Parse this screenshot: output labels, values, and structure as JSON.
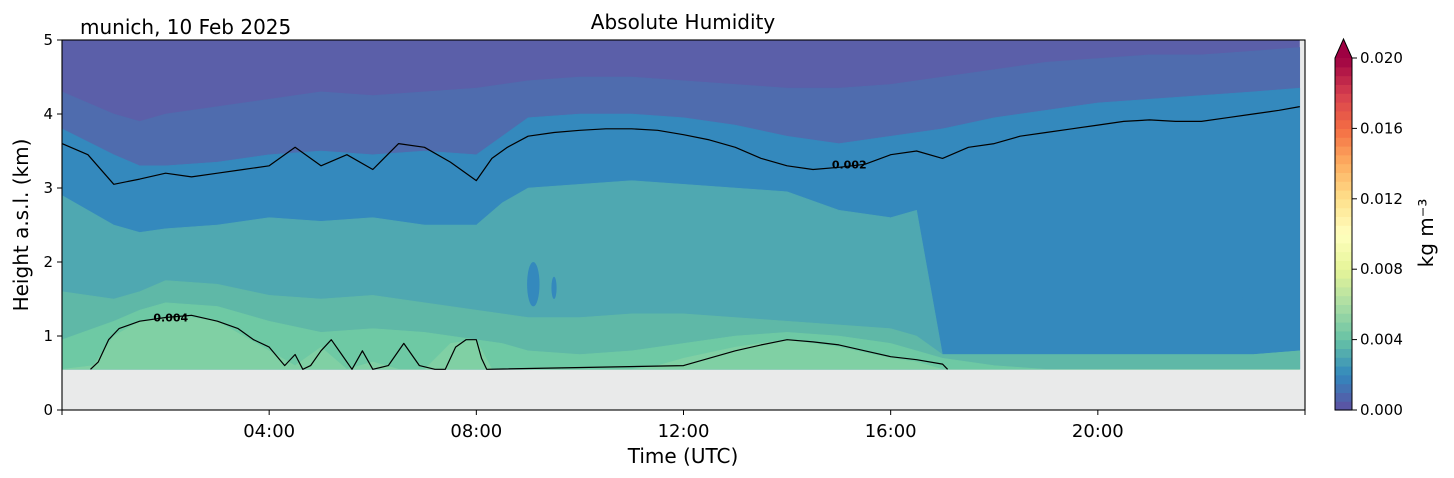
{
  "chart_data": {
    "type": "heatmap",
    "title": "Absolute Humidity",
    "subtitle": "munich, 10 Feb 2025",
    "xlabel": "Time (UTC)",
    "ylabel": "Height a.s.l. (km)",
    "xlim": [
      0,
      24
    ],
    "ylim": [
      0,
      5
    ],
    "x_ticks": [
      4,
      8,
      12,
      16,
      20
    ],
    "x_tick_labels": [
      "04:00",
      "08:00",
      "12:00",
      "16:00",
      "20:00"
    ],
    "y_ticks": [
      0,
      1,
      2,
      3,
      4,
      5
    ],
    "y_tick_labels": [
      "0",
      "1",
      "2",
      "3",
      "4",
      "5"
    ],
    "no_data_below_km": 0.55,
    "data_time_range": [
      0,
      23.9
    ],
    "colorbar": {
      "label": "kg m⁻³",
      "range": [
        0,
        0.02
      ],
      "extend": "max",
      "ticks": [
        0.0,
        0.004,
        0.008,
        0.012,
        0.016,
        0.02
      ],
      "tick_labels": [
        "0.000",
        "0.004",
        "0.008",
        "0.012",
        "0.016",
        "0.020"
      ],
      "colormap": "Spectral_r"
    },
    "level_colors": [
      "#5b5fa9",
      "#4f6cae",
      "#3f7ab6",
      "#3489bd",
      "#3f98bb",
      "#4fa8b1",
      "#5fb8a7",
      "#6ec9a4",
      "#80d0a4"
    ],
    "bands": [
      {
        "level": 0.0005,
        "x": [
          0,
          1,
          1.5,
          2,
          3,
          4,
          5,
          6,
          7,
          8,
          8.5,
          9,
          10,
          11,
          12,
          13,
          14,
          15,
          16,
          17,
          18,
          19,
          20,
          21,
          22,
          23,
          23.9
        ],
        "y": [
          4.3,
          4.0,
          3.9,
          4.0,
          4.1,
          4.2,
          4.3,
          4.25,
          4.3,
          4.35,
          4.4,
          4.45,
          4.5,
          4.5,
          4.45,
          4.4,
          4.35,
          4.35,
          4.4,
          4.5,
          4.6,
          4.7,
          4.75,
          4.8,
          4.8,
          4.85,
          4.9
        ]
      },
      {
        "level": 0.0015,
        "x": [
          0,
          1,
          1.5,
          2,
          3,
          4,
          5,
          6,
          7,
          8,
          8.5,
          9,
          10,
          11,
          12,
          13,
          14,
          15,
          16,
          17,
          18,
          19,
          20,
          21,
          22,
          23,
          23.9
        ],
        "y": [
          3.8,
          3.45,
          3.3,
          3.3,
          3.35,
          3.45,
          3.5,
          3.45,
          3.5,
          3.45,
          3.7,
          3.95,
          4.0,
          4.0,
          3.95,
          3.85,
          3.7,
          3.6,
          3.7,
          3.8,
          3.95,
          4.05,
          4.15,
          4.2,
          4.25,
          4.3,
          4.35
        ]
      },
      {
        "level": 0.0025,
        "x": [
          0,
          1,
          1.5,
          2,
          3,
          4,
          5,
          6,
          7,
          8,
          8.5,
          9,
          10,
          11,
          12,
          13,
          14,
          15,
          16,
          16.5,
          17,
          18,
          19,
          20,
          21,
          22,
          23,
          23.9
        ],
        "y": [
          2.9,
          2.5,
          2.4,
          2.45,
          2.5,
          2.6,
          2.55,
          2.6,
          2.5,
          2.5,
          2.8,
          3.0,
          3.05,
          3.1,
          3.05,
          3.0,
          2.95,
          2.7,
          2.6,
          2.7,
          0.75,
          0.75,
          0.75,
          0.75,
          0.75,
          0.75,
          0.75,
          0.8
        ]
      },
      {
        "level": 0.003,
        "x": [
          0,
          1,
          1.5,
          2,
          3,
          4,
          5,
          6,
          7,
          8,
          8.5,
          9,
          10,
          11,
          12,
          13,
          14,
          15,
          16,
          16.5,
          17,
          18,
          19,
          20,
          21,
          22,
          23,
          23.9
        ],
        "y": [
          1.6,
          1.5,
          1.6,
          1.75,
          1.7,
          1.55,
          1.5,
          1.55,
          1.45,
          1.35,
          1.3,
          1.25,
          1.25,
          1.3,
          1.3,
          1.25,
          1.2,
          1.15,
          1.1,
          1.0,
          0.75,
          0.75,
          0.75,
          0.75,
          0.75,
          0.75,
          0.75,
          0.8
        ]
      },
      {
        "level": 0.0035,
        "x": [
          0,
          1,
          1.5,
          2,
          3,
          4,
          5,
          6,
          7,
          8,
          8.5,
          9,
          10,
          11,
          12,
          13,
          14,
          15,
          16,
          16.5,
          17,
          18,
          19,
          20,
          21,
          22,
          23,
          23.9
        ],
        "y": [
          0.95,
          1.2,
          1.35,
          1.45,
          1.4,
          1.2,
          1.05,
          1.1,
          1.05,
          0.95,
          0.9,
          0.8,
          0.75,
          0.8,
          0.9,
          1.0,
          1.05,
          1.0,
          0.9,
          0.8,
          0.7,
          0.6,
          0.55,
          0.55,
          0.55,
          0.55,
          0.55,
          0.55
        ]
      },
      {
        "level": 0.004,
        "x": [
          0,
          0.6,
          1,
          1.5,
          2,
          2.5,
          3,
          3.5,
          4,
          4.5,
          5,
          5.5,
          6,
          6.5,
          7,
          7.5,
          8,
          8.3,
          9,
          10,
          11,
          11.5,
          12,
          13,
          14,
          15,
          16,
          16.5,
          17,
          18,
          20,
          23.9
        ],
        "y": [
          0.55,
          0.6,
          1.0,
          1.2,
          1.25,
          1.25,
          1.2,
          1.0,
          0.8,
          0.6,
          0.85,
          0.55,
          0.65,
          0.55,
          0.55,
          0.9,
          0.95,
          0.55,
          0.55,
          0.55,
          0.55,
          0.6,
          0.7,
          0.85,
          0.95,
          0.85,
          0.7,
          0.65,
          0.55,
          0.55,
          0.55,
          0.55
        ]
      }
    ],
    "blobs": [
      {
        "level": 0.0015,
        "t": 9.1,
        "h": 1.7,
        "dt": 0.12,
        "dh": 0.3
      },
      {
        "level": 0.0015,
        "t": 9.5,
        "h": 1.65,
        "dt": 0.05,
        "dh": 0.15
      },
      {
        "level": 0.0015,
        "t": 23.0,
        "h": 1.5,
        "dt": 0.2,
        "dh": 0.15
      }
    ],
    "contour_lines": [
      {
        "level": 0.002,
        "label": "0.002",
        "label_position": [
          15.2,
          3.32
        ],
        "x": [
          0,
          0.5,
          1.0,
          1.5,
          2.0,
          2.5,
          3.0,
          3.5,
          4.0,
          4.5,
          5.0,
          5.5,
          6.0,
          6.5,
          7.0,
          7.5,
          8.0,
          8.3,
          8.6,
          9.0,
          9.5,
          10.0,
          10.5,
          11.0,
          11.5,
          12.0,
          12.5,
          13.0,
          13.5,
          14.0,
          14.5,
          15.0,
          15.5,
          16.0,
          16.5,
          17.0,
          17.5,
          18.0,
          18.5,
          19.0,
          19.5,
          20.0,
          20.5,
          21.0,
          21.5,
          22.0,
          22.5,
          23.0,
          23.5,
          23.9
        ],
        "y": [
          3.6,
          3.45,
          3.05,
          3.12,
          3.2,
          3.15,
          3.2,
          3.25,
          3.3,
          3.55,
          3.3,
          3.45,
          3.25,
          3.6,
          3.55,
          3.35,
          3.1,
          3.4,
          3.55,
          3.7,
          3.75,
          3.78,
          3.8,
          3.8,
          3.78,
          3.72,
          3.65,
          3.55,
          3.4,
          3.3,
          3.25,
          3.28,
          3.32,
          3.45,
          3.5,
          3.4,
          3.55,
          3.6,
          3.7,
          3.75,
          3.8,
          3.85,
          3.9,
          3.92,
          3.9,
          3.9,
          3.95,
          4.0,
          4.05,
          4.1
        ]
      },
      {
        "level": 0.004,
        "label": "0.004",
        "label_position": [
          2.1,
          1.25
        ],
        "x": [
          0.55,
          0.7,
          0.9,
          1.1,
          1.5,
          2.0,
          2.5,
          3.0,
          3.4,
          3.7,
          4.0,
          4.3,
          4.5,
          4.65,
          4.8,
          5.0,
          5.2,
          5.4,
          5.6,
          5.8,
          6.0,
          6.3,
          6.6,
          6.9,
          7.2,
          7.4,
          7.6,
          7.8,
          8.0,
          8.1,
          8.2,
          12.0,
          12.5,
          13.0,
          13.5,
          14.0,
          14.5,
          15.0,
          15.5,
          16.0,
          16.5,
          17.0,
          17.1
        ],
        "y": [
          0.55,
          0.65,
          0.95,
          1.1,
          1.2,
          1.25,
          1.28,
          1.2,
          1.1,
          0.95,
          0.85,
          0.6,
          0.75,
          0.55,
          0.6,
          0.8,
          0.95,
          0.75,
          0.55,
          0.8,
          0.55,
          0.6,
          0.9,
          0.6,
          0.55,
          0.55,
          0.85,
          0.95,
          0.95,
          0.7,
          0.55,
          0.6,
          0.7,
          0.8,
          0.88,
          0.95,
          0.92,
          0.88,
          0.8,
          0.72,
          0.68,
          0.62,
          0.55
        ]
      }
    ]
  }
}
